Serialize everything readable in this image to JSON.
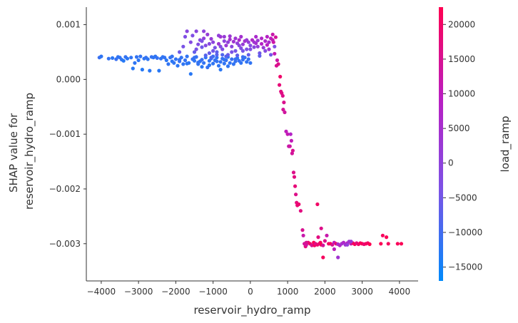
{
  "chart_data": {
    "type": "scatter",
    "xlabel": "reservoir_hydro_ramp",
    "ylabel_lines": [
      "SHAP value for",
      "reservoir_hydro_ramp"
    ],
    "colorbar_label": "load_ramp",
    "xlim": [
      -4400,
      4500
    ],
    "ylim": [
      -0.00368,
      0.00132
    ],
    "xticks": [
      -4000,
      -3000,
      -2000,
      -1000,
      0,
      1000,
      2000,
      3000,
      4000
    ],
    "xtick_labels": [
      "−4000",
      "−3000",
      "−2000",
      "−1000",
      "0",
      "1000",
      "2000",
      "3000",
      "4000"
    ],
    "yticks": [
      0.001,
      0.0,
      -0.001,
      -0.002,
      -0.003
    ],
    "ytick_labels": [
      "0.001",
      "0.000",
      "−0.001",
      "−0.002",
      "−0.003"
    ],
    "colorbar_range": [
      -17000,
      22500
    ],
    "colorbar_ticks": [
      20000,
      15000,
      10000,
      5000,
      0,
      -5000,
      -10000,
      -15000
    ],
    "colorbar_tick_labels": [
      "20000",
      "15000",
      "10000",
      "5000",
      "0",
      "−5000",
      "−10000",
      "−15000"
    ],
    "colormap": [
      "#008afb",
      "#7c52e6",
      "#ba1ec2",
      "#ff0051"
    ],
    "points": [
      [
        -4050,
        0.0004,
        -11000
      ],
      [
        -4000,
        0.00042,
        -12000
      ],
      [
        -3800,
        0.00038,
        -11500
      ],
      [
        -3700,
        0.00039,
        -12500
      ],
      [
        -3600,
        0.00037,
        -11000
      ],
      [
        -3550,
        0.00041,
        -12000
      ],
      [
        -3500,
        0.0004,
        -11800
      ],
      [
        -3450,
        0.00036,
        -12200
      ],
      [
        -3400,
        0.00034,
        -13000
      ],
      [
        -3350,
        0.00041,
        -11500
      ],
      [
        -3300,
        0.00038,
        -12400
      ],
      [
        -3200,
        0.0004,
        -11900
      ],
      [
        -3150,
        0.0002,
        -12800
      ],
      [
        -3100,
        0.0003,
        -12100
      ],
      [
        -3050,
        0.00041,
        -11600
      ],
      [
        -3000,
        0.00035,
        -12300
      ],
      [
        -2950,
        0.00042,
        -11700
      ],
      [
        -2900,
        0.00018,
        -13000
      ],
      [
        -2850,
        0.00038,
        -12000
      ],
      [
        -2800,
        0.0004,
        -11500
      ],
      [
        -2750,
        0.00037,
        -12200
      ],
      [
        -2700,
        0.00016,
        -12600
      ],
      [
        -2650,
        0.00041,
        -11400
      ],
      [
        -2600,
        0.0004,
        -11900
      ],
      [
        -2550,
        0.00042,
        -12100
      ],
      [
        -2500,
        0.00039,
        -11300
      ],
      [
        -2450,
        0.00016,
        -12700
      ],
      [
        -2400,
        0.00038,
        -11800
      ],
      [
        -2350,
        0.00041,
        -12000
      ],
      [
        -2300,
        0.0004,
        -11600
      ],
      [
        -2250,
        0.00035,
        -12200
      ],
      [
        -2200,
        0.00028,
        -11900
      ],
      [
        -2150,
        0.0004,
        -11500
      ],
      [
        -2100,
        0.00033,
        -12400
      ],
      [
        -2050,
        0.0003,
        -12000
      ],
      [
        -2000,
        0.00037,
        -11700
      ],
      [
        -1950,
        0.00025,
        -12300
      ],
      [
        -1900,
        0.00033,
        -11100
      ],
      [
        -1850,
        0.0004,
        -11800
      ],
      [
        -1800,
        0.00028,
        -12000
      ],
      [
        -1750,
        0.00035,
        -11500
      ],
      [
        -1700,
        0.00042,
        -11900
      ],
      [
        -1650,
        0.0003,
        -12300
      ],
      [
        -1600,
        0.0001,
        -12700
      ],
      [
        -1550,
        0.00037,
        -11600
      ],
      [
        -1500,
        0.00034,
        -12100
      ],
      [
        -1450,
        0.00041,
        -11400
      ],
      [
        -1400,
        0.00028,
        -11800
      ],
      [
        -1350,
        0.00033,
        -12200
      ],
      [
        -1300,
        0.00036,
        -11000
      ],
      [
        -1250,
        0.0003,
        -11700
      ],
      [
        -1200,
        0.0004,
        -12000
      ],
      [
        -1150,
        0.00022,
        -11300
      ],
      [
        -1100,
        0.00034,
        -11900
      ],
      [
        -1050,
        0.00038,
        -11500
      ],
      [
        -1000,
        0.00029,
        -12100
      ],
      [
        -950,
        0.00035,
        -11200
      ],
      [
        -900,
        0.0004,
        -11800
      ],
      [
        -850,
        0.00025,
        -12000
      ],
      [
        -800,
        0.00032,
        -11600
      ],
      [
        -750,
        0.00038,
        -11300
      ],
      [
        -700,
        0.00029,
        -11900
      ],
      [
        -650,
        0.00035,
        -11400
      ],
      [
        -600,
        0.00041,
        -12000
      ],
      [
        -550,
        0.0003,
        -11700
      ],
      [
        -500,
        0.00037,
        -11200
      ],
      [
        -450,
        0.00028,
        -11800
      ],
      [
        -400,
        0.00033,
        -11500
      ],
      [
        -350,
        0.00039,
        -12100
      ],
      [
        -300,
        0.00034,
        -11400
      ],
      [
        -250,
        0.0003,
        -11900
      ],
      [
        -200,
        0.00036,
        -11600
      ],
      [
        -150,
        0.0004,
        -11300
      ],
      [
        -100,
        0.00032,
        -11800
      ],
      [
        -50,
        0.00037,
        -11500
      ],
      [
        0,
        0.0003,
        -11900
      ],
      [
        -1700,
        0.00029,
        -12200
      ],
      [
        -1400,
        0.00031,
        -11600
      ],
      [
        -1100,
        0.00026,
        -12400
      ],
      [
        -800,
        0.00018,
        -12500
      ],
      [
        -600,
        0.00024,
        -12100
      ],
      [
        -1900,
        0.00036,
        -11600
      ],
      [
        -1500,
        0.0004,
        -11300
      ],
      [
        -900,
        0.00033,
        -11700
      ],
      [
        -400,
        0.00037,
        -11200
      ],
      [
        -2100,
        0.00042,
        -11400
      ],
      [
        -1300,
        0.00023,
        -12600
      ],
      [
        -700,
        0.00036,
        -11800
      ],
      [
        -1000,
        0.00042,
        -10800
      ],
      [
        -200,
        0.00041,
        -10900
      ],
      [
        -1700,
        0.00088,
        -1000
      ],
      [
        -1550,
        0.0008,
        -3000
      ],
      [
        -1450,
        0.00055,
        -4000
      ],
      [
        -1400,
        0.00064,
        -2500
      ],
      [
        -1350,
        0.00072,
        -1500
      ],
      [
        -1300,
        0.00059,
        -5000
      ],
      [
        -1250,
        0.00075,
        500
      ],
      [
        -1200,
        0.00062,
        -2000
      ],
      [
        -1150,
        0.00082,
        1500
      ],
      [
        -1100,
        0.00048,
        -6000
      ],
      [
        -1050,
        0.00074,
        2000
      ],
      [
        -1000,
        0.00068,
        -500
      ],
      [
        -950,
        0.00058,
        -4000
      ],
      [
        -900,
        0.0005,
        -7000
      ],
      [
        -850,
        0.00065,
        3000
      ],
      [
        -800,
        0.00078,
        4000
      ],
      [
        -750,
        0.00055,
        -3000
      ],
      [
        -700,
        0.0007,
        0
      ],
      [
        -650,
        0.00062,
        2500
      ],
      [
        -600,
        0.00045,
        -5500
      ],
      [
        -550,
        0.00073,
        5000
      ],
      [
        -500,
        0.0006,
        -1000
      ],
      [
        -450,
        0.00069,
        3500
      ],
      [
        -400,
        0.00052,
        -4500
      ],
      [
        -350,
        0.00066,
        1000
      ],
      [
        -300,
        0.00072,
        6000
      ],
      [
        -250,
        0.00057,
        -2500
      ],
      [
        -200,
        0.00064,
        2000
      ],
      [
        -150,
        0.0007,
        4500
      ],
      [
        -100,
        0.00055,
        -3500
      ],
      [
        -50,
        0.00068,
        1500
      ],
      [
        0,
        0.00062,
        -2000
      ],
      [
        50,
        0.00072,
        7000
      ],
      [
        100,
        0.00059,
        -1000
      ],
      [
        150,
        0.00066,
        5000
      ],
      [
        200,
        0.00071,
        3000
      ],
      [
        250,
        0.00048,
        -5000
      ],
      [
        300,
        0.00065,
        8000
      ],
      [
        350,
        0.00058,
        2000
      ],
      [
        400,
        0.0007,
        6500
      ],
      [
        450,
        0.00063,
        9000
      ],
      [
        500,
        0.00055,
        4000
      ],
      [
        550,
        0.00075,
        10000
      ],
      [
        600,
        0.00082,
        12000
      ],
      [
        620,
        0.00068,
        13000
      ],
      [
        650,
        0.00047,
        11000
      ],
      [
        680,
        0.00077,
        14000
      ],
      [
        700,
        0.00025,
        15000
      ],
      [
        720,
        0.00035,
        12500
      ],
      [
        750,
        0.00028,
        16000
      ],
      [
        -1600,
        0.00068,
        -2000
      ],
      [
        -1500,
        0.0005,
        -6500
      ],
      [
        -1300,
        0.0007,
        -3500
      ],
      [
        -1100,
        0.00065,
        -1500
      ],
      [
        -1000,
        0.00052,
        -5000
      ],
      [
        -800,
        0.0006,
        -2500
      ],
      [
        -700,
        0.00078,
        2000
      ],
      [
        -600,
        0.00068,
        500
      ],
      [
        -500,
        0.0005,
        -4000
      ],
      [
        -400,
        0.00075,
        3500
      ],
      [
        -300,
        0.00062,
        -1500
      ],
      [
        -200,
        0.00052,
        -4500
      ],
      [
        -100,
        0.00072,
        2500
      ],
      [
        0,
        0.00055,
        -3000
      ],
      [
        100,
        0.00068,
        4000
      ],
      [
        200,
        0.0006,
        1000
      ],
      [
        300,
        0.00075,
        7500
      ],
      [
        400,
        0.00052,
        -2000
      ],
      [
        500,
        0.00068,
        5500
      ],
      [
        -1200,
        0.00044,
        -8000
      ],
      [
        -900,
        0.00045,
        -7500
      ],
      [
        -650,
        0.00042,
        -8000
      ],
      [
        -1800,
        0.0006,
        -4000
      ],
      [
        -1900,
        0.0005,
        -5500
      ],
      [
        -1750,
        0.00078,
        -3000
      ],
      [
        -1450,
        0.00088,
        -1000
      ],
      [
        -1250,
        0.00088,
        0
      ],
      [
        -850,
        0.0008,
        1000
      ],
      [
        -550,
        0.00079,
        3000
      ],
      [
        -250,
        0.00078,
        4500
      ],
      [
        150,
        0.00078,
        6000
      ],
      [
        450,
        0.00078,
        8500
      ],
      [
        600,
        0.00072,
        11000
      ],
      [
        -1050,
        0.0004,
        -9000
      ],
      [
        -750,
        0.00045,
        -8500
      ],
      [
        -350,
        0.00044,
        -7000
      ],
      [
        -50,
        0.00045,
        -6500
      ],
      [
        250,
        0.00043,
        -7000
      ],
      [
        550,
        0.00045,
        -5000
      ],
      [
        650,
        0.0006,
        -3000
      ],
      [
        780,
        -0.0001,
        18000
      ],
      [
        800,
        5e-05,
        19500
      ],
      [
        820,
        -0.00022,
        17000
      ],
      [
        840,
        -0.00025,
        16500
      ],
      [
        870,
        -0.0003,
        16000
      ],
      [
        880,
        -0.00055,
        14000
      ],
      [
        900,
        -0.00042,
        15500
      ],
      [
        920,
        -0.0006,
        13500
      ],
      [
        960,
        -0.00095,
        10000
      ],
      [
        1000,
        -0.001,
        11000
      ],
      [
        1030,
        -0.00122,
        12000
      ],
      [
        1060,
        -0.00122,
        13000
      ],
      [
        1080,
        -0.001,
        8000
      ],
      [
        1100,
        -0.00112,
        10500
      ],
      [
        1120,
        -0.00135,
        14000
      ],
      [
        1140,
        -0.0013,
        15000
      ],
      [
        1160,
        -0.0017,
        16000
      ],
      [
        1180,
        -0.00178,
        17000
      ],
      [
        1200,
        -0.00195,
        18000
      ],
      [
        1220,
        -0.0021,
        16000
      ],
      [
        1240,
        -0.00225,
        17500
      ],
      [
        1260,
        -0.0023,
        18500
      ],
      [
        1300,
        -0.00228,
        19000
      ],
      [
        1350,
        -0.0024,
        17000
      ],
      [
        1400,
        -0.00275,
        15000
      ],
      [
        1420,
        -0.00285,
        12000
      ],
      [
        1450,
        -0.003,
        14000
      ],
      [
        1480,
        -0.00305,
        18000
      ],
      [
        1500,
        -0.00302,
        13000
      ],
      [
        1550,
        -0.00298,
        19000
      ],
      [
        1600,
        -0.003,
        20000
      ],
      [
        1650,
        -0.00303,
        15000
      ],
      [
        1700,
        -0.00298,
        22000
      ],
      [
        1720,
        -0.00303,
        21000
      ],
      [
        1750,
        -0.003,
        16000
      ],
      [
        1800,
        -0.00302,
        19000
      ],
      [
        1820,
        -0.00288,
        17000
      ],
      [
        1850,
        -0.003,
        18000
      ],
      [
        1880,
        -0.00298,
        21000
      ],
      [
        1900,
        -0.00302,
        22000
      ],
      [
        1950,
        -0.00303,
        14000
      ],
      [
        2000,
        -0.00295,
        16000
      ],
      [
        2050,
        -0.00285,
        12000
      ],
      [
        2100,
        -0.003,
        20000
      ],
      [
        2150,
        -0.003,
        21500
      ],
      [
        2200,
        -0.00302,
        15000
      ],
      [
        2250,
        -0.00298,
        10000
      ],
      [
        2300,
        -0.003,
        19000
      ],
      [
        2350,
        -0.00301,
        6000
      ],
      [
        2400,
        -0.00303,
        8000
      ],
      [
        2450,
        -0.003,
        5000
      ],
      [
        2500,
        -0.00298,
        7000
      ],
      [
        2550,
        -0.00302,
        4000
      ],
      [
        2600,
        -0.00299,
        9000
      ],
      [
        2650,
        -0.00296,
        3000
      ],
      [
        2700,
        -0.003,
        11000
      ],
      [
        2750,
        -0.00299,
        20000
      ],
      [
        2800,
        -0.00301,
        22000
      ],
      [
        2850,
        -0.00299,
        17000
      ],
      [
        2900,
        -0.00301,
        19500
      ],
      [
        2950,
        -0.00299,
        21000
      ],
      [
        3000,
        -0.003,
        22000
      ],
      [
        3050,
        -0.00301,
        18000
      ],
      [
        3100,
        -0.003,
        21000
      ],
      [
        3150,
        -0.00299,
        20000
      ],
      [
        3200,
        -0.00301,
        22500
      ],
      [
        3550,
        -0.00285,
        21000
      ],
      [
        3650,
        -0.00288,
        22000
      ],
      [
        3950,
        -0.003,
        21500
      ],
      [
        4050,
        -0.003,
        22000
      ],
      [
        1800,
        -0.00228,
        20000
      ],
      [
        1900,
        -0.00272,
        16000
      ],
      [
        1950,
        -0.00325,
        21000
      ],
      [
        2250,
        -0.0031,
        10000
      ],
      [
        2350,
        -0.00325,
        4000
      ],
      [
        1500,
        -0.00298,
        15000
      ],
      [
        2600,
        -0.00302,
        1000
      ],
      [
        2700,
        -0.00296,
        2000
      ],
      [
        3500,
        -0.003,
        22000
      ],
      [
        3700,
        -0.003,
        21000
      ]
    ]
  }
}
